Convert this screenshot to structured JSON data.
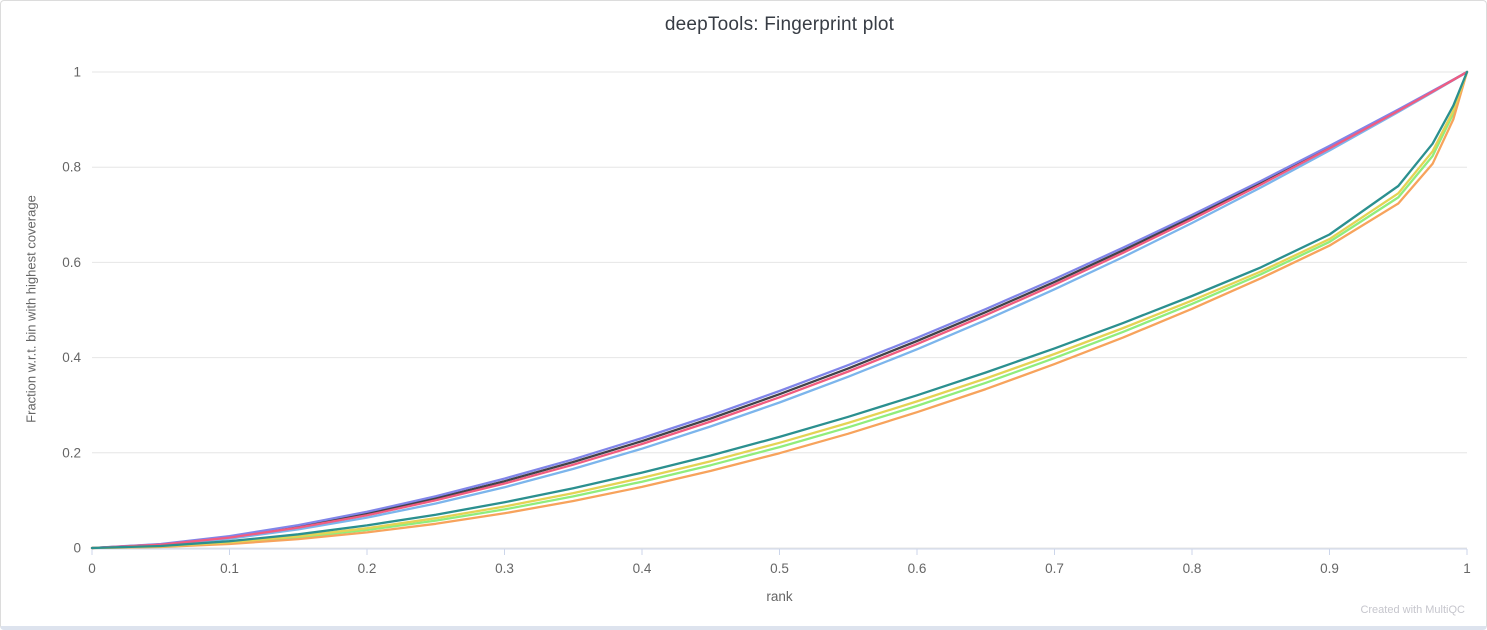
{
  "panel": {
    "watermark": "Created with MultiQC"
  },
  "chart_data": {
    "type": "line",
    "title": "deepTools: Fingerprint plot",
    "xlabel": "rank",
    "ylabel": "Fraction w.r.t. bin with highest coverage",
    "xlim": [
      0,
      1
    ],
    "ylim": [
      0,
      1
    ],
    "grid": "horizontal",
    "legend": "none",
    "x_tick_values": [
      0,
      0.1,
      0.2,
      0.3,
      0.4,
      0.5,
      0.6,
      0.7,
      0.8,
      0.9,
      1
    ],
    "x_tick_labels": [
      "0",
      "0.1",
      "0.2",
      "0.3",
      "0.4",
      "0.5",
      "0.6",
      "0.7",
      "0.8",
      "0.9",
      "1"
    ],
    "y_tick_values": [
      0,
      0.2,
      0.4,
      0.6,
      0.8,
      1
    ],
    "y_tick_labels": [
      "0",
      "0.2",
      "0.4",
      "0.6",
      "0.8",
      "1"
    ],
    "colors": {
      "grid_line": "#e6e6e6",
      "axis_line": "#ccd6eb",
      "tick_mark": "#ccd6eb",
      "tick_label": "#666666",
      "axis_title": "#666666",
      "chart_title": "#373c44",
      "watermark": "#c6c6cd"
    },
    "x": [
      0,
      0.05,
      0.1,
      0.15,
      0.2,
      0.25,
      0.3,
      0.35,
      0.4,
      0.45,
      0.5,
      0.55,
      0.6,
      0.65,
      0.7,
      0.75,
      0.8,
      0.85,
      0.9,
      0.95,
      0.975,
      0.99,
      1
    ],
    "series": [
      {
        "id": "series-1-lightblue",
        "color": "#7cb5ec",
        "values": [
          0,
          0.006,
          0.0195,
          0.039,
          0.0638,
          0.0934,
          0.1276,
          0.1661,
          0.2087,
          0.2554,
          0.3057,
          0.3598,
          0.4175,
          0.4787,
          0.5434,
          0.6114,
          0.6828,
          0.7574,
          0.8351,
          0.916,
          0.9576,
          0.9829,
          1
        ]
      },
      {
        "id": "series-2-darkgray",
        "color": "#434348",
        "values": [
          0,
          0.0076,
          0.0234,
          0.0454,
          0.0726,
          0.1044,
          0.1404,
          0.1807,
          0.2245,
          0.272,
          0.3231,
          0.3774,
          0.4349,
          0.4955,
          0.5591,
          0.6256,
          0.6951,
          0.7673,
          0.8421,
          0.9198,
          0.9596,
          0.9838,
          1
        ]
      },
      {
        "id": "series-3-green",
        "color": "#90ed7d",
        "values": [
          0,
          0.0028,
          0.0103,
          0.0221,
          0.0378,
          0.0576,
          0.0811,
          0.1084,
          0.1393,
          0.1739,
          0.2119,
          0.2535,
          0.2986,
          0.347,
          0.3989,
          0.4541,
          0.5128,
          0.575,
          0.6431,
          0.7366,
          0.8236,
          0.9126,
          1
        ]
      },
      {
        "id": "series-4-orange",
        "color": "#f7a35c",
        "values": [
          0,
          0.0021,
          0.0083,
          0.0186,
          0.0328,
          0.0509,
          0.0728,
          0.0987,
          0.1283,
          0.1619,
          0.1991,
          0.2402,
          0.2852,
          0.3338,
          0.3863,
          0.4425,
          0.5026,
          0.5665,
          0.6352,
          0.7237,
          0.8072,
          0.9005,
          1
        ]
      },
      {
        "id": "series-5-purple",
        "color": "#8085e9",
        "values": [
          0,
          0.0083,
          0.0251,
          0.0481,
          0.0761,
          0.1088,
          0.1459,
          0.1864,
          0.2309,
          0.2786,
          0.3299,
          0.3842,
          0.4416,
          0.5019,
          0.5651,
          0.6311,
          0.6998,
          0.771,
          0.8448,
          0.9212,
          0.9603,
          0.984,
          1
        ]
      },
      {
        "id": "series-6-pink",
        "color": "#f15c80",
        "values": [
          0,
          0.0069,
          0.0219,
          0.0429,
          0.0688,
          0.1002,
          0.1355,
          0.1751,
          0.2184,
          0.2657,
          0.3165,
          0.3707,
          0.4283,
          0.4892,
          0.5532,
          0.6203,
          0.6905,
          0.7635,
          0.8395,
          0.9183,
          0.9588,
          0.9834,
          1
        ]
      },
      {
        "id": "series-7-yellow",
        "color": "#e4d354",
        "values": [
          0,
          0.0033,
          0.0119,
          0.0247,
          0.0417,
          0.0626,
          0.0872,
          0.1154,
          0.1472,
          0.1824,
          0.221,
          0.2628,
          0.3079,
          0.3561,
          0.4075,
          0.4621,
          0.5197,
          0.5809,
          0.6489,
          0.7451,
          0.8333,
          0.919,
          1
        ]
      },
      {
        "id": "series-8-teal",
        "color": "#2b908f",
        "values": [
          0,
          0.0043,
          0.0142,
          0.0287,
          0.0474,
          0.0699,
          0.096,
          0.1256,
          0.1584,
          0.1944,
          0.2335,
          0.2757,
          0.3207,
          0.3686,
          0.4193,
          0.4728,
          0.5294,
          0.5896,
          0.6586,
          0.7606,
          0.8494,
          0.9292,
          1
        ]
      }
    ]
  }
}
